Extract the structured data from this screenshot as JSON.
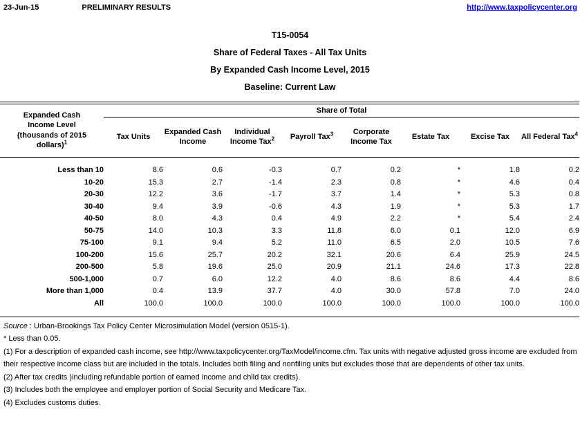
{
  "header": {
    "date": "23-Jun-15",
    "preliminary": "PRELIMINARY RESULTS",
    "link": "http://www.taxpolicycenter.org",
    "link_color": "#0000ff"
  },
  "title": {
    "line1": "T15-0054",
    "line2": "Share of Federal Taxes - All Tax Units",
    "line3": "By Expanded Cash Income Level, 2015",
    "line4": "Baseline: Current Law"
  },
  "table": {
    "stub_header": {
      "lines": [
        "Expanded Cash",
        "Income Level",
        "(thousands of 2015",
        "dollars)"
      ],
      "sup": "1"
    },
    "group_header": "Share of Total",
    "columns": [
      {
        "label": "Tax Units",
        "sup": ""
      },
      {
        "label": "Expanded Cash Income",
        "sup": ""
      },
      {
        "label": "Individual Income Tax",
        "sup": "2"
      },
      {
        "label": "Payroll Tax",
        "sup": "3"
      },
      {
        "label": "Corporate Income Tax",
        "sup": ""
      },
      {
        "label": "Estate Tax",
        "sup": ""
      },
      {
        "label": "Excise Tax",
        "sup": ""
      },
      {
        "label": "All Federal Tax",
        "sup": "4"
      }
    ],
    "rows": [
      {
        "label": "Less than 10",
        "values": [
          "8.6",
          "0.6",
          "-0.3",
          "0.7",
          "0.2",
          "*",
          "1.8",
          "0.2"
        ]
      },
      {
        "label": "10-20",
        "values": [
          "15.3",
          "2.7",
          "-1.4",
          "2.3",
          "0.8",
          "*",
          "4.6",
          "0.4"
        ]
      },
      {
        "label": "20-30",
        "values": [
          "12.2",
          "3.6",
          "-1.7",
          "3.7",
          "1.4",
          "*",
          "5.3",
          "0.8"
        ]
      },
      {
        "label": "30-40",
        "values": [
          "9.4",
          "3.9",
          "-0.6",
          "4.3",
          "1.9",
          "*",
          "5.3",
          "1.7"
        ]
      },
      {
        "label": "40-50",
        "values": [
          "8.0",
          "4.3",
          "0.4",
          "4.9",
          "2.2",
          "*",
          "5.4",
          "2.4"
        ]
      },
      {
        "label": "50-75",
        "values": [
          "14.0",
          "10.3",
          "3.3",
          "11.8",
          "6.0",
          "0.1",
          "12.0",
          "6.9"
        ]
      },
      {
        "label": "75-100",
        "values": [
          "9.1",
          "9.4",
          "5.2",
          "11.0",
          "6.5",
          "2.0",
          "10.5",
          "7.6"
        ]
      },
      {
        "label": "100-200",
        "values": [
          "15.6",
          "25.7",
          "20.2",
          "32.1",
          "20.6",
          "6.4",
          "25.9",
          "24.5"
        ]
      },
      {
        "label": "200-500",
        "values": [
          "5.8",
          "19.6",
          "25.0",
          "20.9",
          "21.1",
          "24.6",
          "17.3",
          "22.8"
        ]
      },
      {
        "label": "500-1,000",
        "values": [
          "0.7",
          "6.0",
          "12.2",
          "4.0",
          "8.6",
          "8.6",
          "4.4",
          "8.6"
        ]
      },
      {
        "label": "More than 1,000",
        "values": [
          "0.4",
          "13.9",
          "37.7",
          "4.0",
          "30.0",
          "57.8",
          "7.0",
          "24.0"
        ]
      },
      {
        "label": "All",
        "values": [
          "100.0",
          "100.0",
          "100.0",
          "100.0",
          "100.0",
          "100.0",
          "100.0",
          "100.0"
        ]
      }
    ]
  },
  "footnotes": {
    "source_label": "Source",
    "source_text": " : Urban-Brookings Tax Policy Center Microsimulation Model (version 0515-1).",
    "notes": [
      "* Less than 0.05.",
      "(1) For a description of expanded cash income, see http://www.taxpolicycenter.org/TaxModel/income.cfm. Tax units with negative adjusted gross income are excluded from their respective income class but are included in the totals. Includes both filing and nonfiling units but excludes those that are dependents of other tax units.",
      "(2) After tax credits )including refundable portion of earned income and child tax credits).",
      "(3) Includes both the employee and employer portion of Social Security and Medicare Tax.",
      "(4) Excludes customs duties."
    ]
  }
}
